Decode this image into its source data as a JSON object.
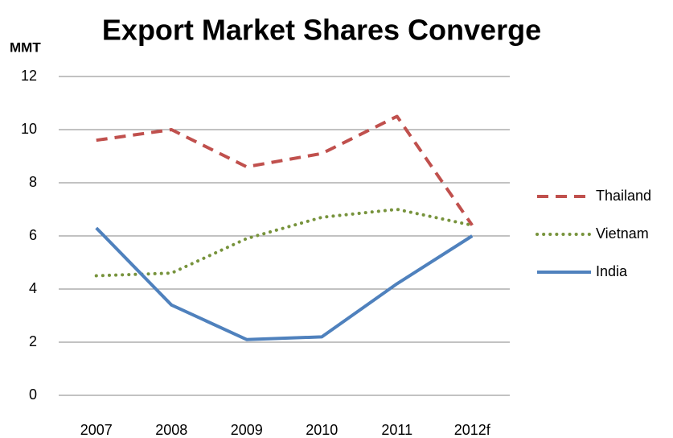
{
  "chart_data": {
    "type": "line",
    "title": "Export Market Shares Converge",
    "y_label": "MMT",
    "categories": [
      "2007",
      "2008",
      "2009",
      "2010",
      "2011",
      "2012f"
    ],
    "series": [
      {
        "name": "Thailand",
        "color": "#c0504d",
        "dash": "dashed",
        "values": [
          9.6,
          10.0,
          8.6,
          9.1,
          10.5,
          6.4
        ]
      },
      {
        "name": "Vietnam",
        "color": "#77933c",
        "dash": "dotted",
        "values": [
          4.5,
          4.6,
          5.9,
          6.7,
          7.0,
          6.4
        ]
      },
      {
        "name": "India",
        "color": "#4f81bd",
        "dash": "solid",
        "values": [
          6.3,
          3.4,
          2.1,
          2.2,
          4.2,
          6.0
        ]
      }
    ],
    "ylim": [
      0,
      12
    ],
    "yticks": [
      0,
      2,
      4,
      6,
      8,
      10,
      12
    ],
    "grid": true,
    "legend": "right"
  }
}
